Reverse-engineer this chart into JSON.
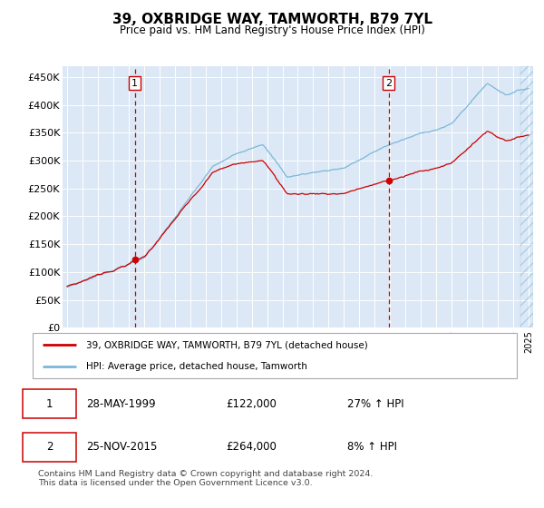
{
  "title": "39, OXBRIDGE WAY, TAMWORTH, B79 7YL",
  "subtitle": "Price paid vs. HM Land Registry's House Price Index (HPI)",
  "ylabel_ticks": [
    "£0",
    "£50K",
    "£100K",
    "£150K",
    "£200K",
    "£250K",
    "£300K",
    "£350K",
    "£400K",
    "£450K"
  ],
  "ytick_values": [
    0,
    50000,
    100000,
    150000,
    200000,
    250000,
    300000,
    350000,
    400000,
    450000
  ],
  "ylim": [
    0,
    470000
  ],
  "xlim_start": 1994.7,
  "xlim_end": 2025.3,
  "purchase1_date": 1999.4,
  "purchase1_price": 122000,
  "purchase2_date": 2015.9,
  "purchase2_price": 264000,
  "hpi_line_color": "#7ab8d9",
  "price_line_color": "#cc0000",
  "marker_color": "#cc0000",
  "vline_color": "#cc0000",
  "grid_color": "white",
  "plot_bg_color": "#dce8f5",
  "legend_entry1": "39, OXBRIDGE WAY, TAMWORTH, B79 7YL (detached house)",
  "legend_entry2": "HPI: Average price, detached house, Tamworth",
  "table_row1": [
    "1",
    "28-MAY-1999",
    "£122,000",
    "27% ↑ HPI"
  ],
  "table_row2": [
    "2",
    "25-NOV-2015",
    "£264,000",
    "8% ↑ HPI"
  ],
  "footnote": "Contains HM Land Registry data © Crown copyright and database right 2024.\nThis data is licensed under the Open Government Licence v3.0.",
  "hatch_start": 2024.5
}
